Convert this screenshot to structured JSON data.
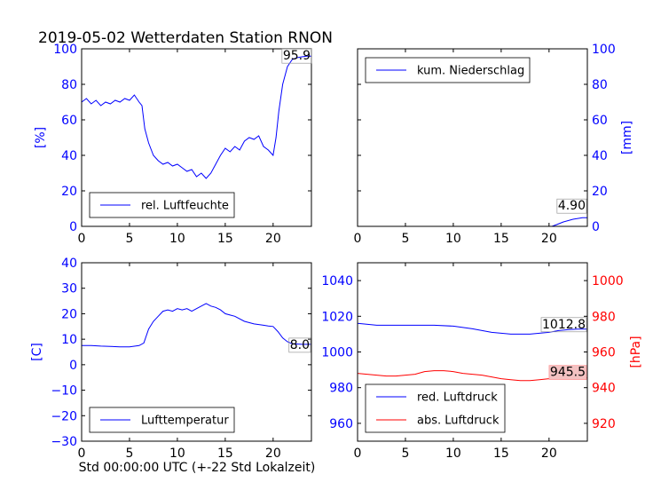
{
  "figure": {
    "title": "2019-05-02 Wetterdaten Station RNON",
    "bottom_label": "Std 00:00:00 UTC (+-22 Std Lokalzeit)",
    "colors": {
      "blue": "#0000ff",
      "red": "#ff0000",
      "black": "#000000",
      "red_box": "#f4c2c2"
    }
  },
  "chart_data": [
    {
      "id": "humidity",
      "type": "line",
      "ylabel": "[%]",
      "ylabel_color": "#0000ff",
      "xlim": [
        0,
        24
      ],
      "ylim": [
        0,
        100
      ],
      "xticks": [
        0,
        5,
        10,
        15,
        20
      ],
      "yticks": [
        0,
        20,
        40,
        60,
        80,
        100
      ],
      "ytick_color": "#0000ff",
      "legend": "bottom-left",
      "series": [
        {
          "name": "rel. Luftfeuchte",
          "color": "#0000ff",
          "x": [
            0,
            0.5,
            1,
            1.5,
            2,
            2.5,
            3,
            3.5,
            4,
            4.5,
            5,
            5.5,
            6,
            6.3,
            6.6,
            7,
            7.5,
            8,
            8.5,
            9,
            9.5,
            10,
            10.5,
            11,
            11.5,
            12,
            12.5,
            13,
            13.5,
            14,
            14.5,
            15,
            15.5,
            16,
            16.5,
            17,
            17.5,
            18,
            18.5,
            19,
            19.5,
            20,
            20.3,
            20.6,
            21,
            21.5,
            22,
            22.5,
            23,
            23.5,
            24
          ],
          "y": [
            70,
            72,
            69,
            71,
            68,
            70,
            69,
            71,
            70,
            72,
            71,
            74,
            70,
            68,
            55,
            47,
            40,
            37,
            35,
            36,
            34,
            35,
            33,
            31,
            32,
            28,
            30,
            27,
            30,
            35,
            40,
            44,
            42,
            45,
            43,
            48,
            50,
            49,
            51,
            45,
            43,
            40,
            50,
            65,
            80,
            90,
            94,
            95,
            95.5,
            95.9,
            95.9
          ]
        }
      ],
      "annotation": "95.9"
    },
    {
      "id": "precipitation",
      "type": "line",
      "ylabel": "[mm]",
      "ylabel_color": "#0000ff",
      "xlim": [
        0,
        24
      ],
      "ylim": [
        0,
        100
      ],
      "xticks": [
        0,
        5,
        10,
        15,
        20
      ],
      "yticks": [
        0,
        20,
        40,
        60,
        80,
        100
      ],
      "ytick_color": "#0000ff",
      "legend": "top-left",
      "series": [
        {
          "name": "kum. Niederschlag",
          "color": "#0000ff",
          "x": [
            0,
            20.3,
            20.8,
            21.5,
            22.5,
            23.5,
            24
          ],
          "y": [
            0,
            0,
            1.0,
            2.5,
            4.0,
            4.9,
            4.9
          ]
        }
      ],
      "annotation": "4.90"
    },
    {
      "id": "temperature",
      "type": "line",
      "ylabel": "[C]",
      "ylabel_color": "#0000ff",
      "xlim": [
        0,
        24
      ],
      "ylim": [
        -30,
        40
      ],
      "xticks": [
        0,
        5,
        10,
        15,
        20
      ],
      "yticks": [
        -30,
        -20,
        -10,
        0,
        10,
        20,
        30,
        40
      ],
      "ytick_color": "#0000ff",
      "legend": "bottom-left",
      "series": [
        {
          "name": "Lufttemperatur",
          "color": "#0000ff",
          "x": [
            0,
            1,
            2,
            3,
            4,
            5,
            6,
            6.5,
            7,
            7.5,
            8,
            8.5,
            9,
            9.5,
            10,
            10.5,
            11,
            11.5,
            12,
            12.5,
            13,
            13.5,
            14,
            14.5,
            15,
            15.5,
            16,
            17,
            18,
            19,
            19.5,
            20,
            20.5,
            21,
            21.5,
            22,
            23,
            24
          ],
          "y": [
            7.5,
            7.5,
            7.3,
            7.2,
            7.0,
            7.0,
            7.5,
            8.5,
            14,
            17,
            19,
            21,
            21.5,
            21,
            22,
            21.5,
            22,
            21,
            22,
            23,
            24,
            23,
            22.5,
            21.5,
            20,
            19.5,
            19,
            17,
            16,
            15.5,
            15.2,
            15,
            13,
            10.5,
            9,
            8.2,
            8.0,
            8.0
          ]
        }
      ],
      "annotation": "8.0"
    },
    {
      "id": "pressure",
      "type": "line",
      "ylim_left": [
        950,
        1050
      ],
      "yticks_left": [
        960,
        980,
        1000,
        1020,
        1040
      ],
      "ylim_right": [
        910,
        1010
      ],
      "yticks_right": [
        920,
        940,
        960,
        980,
        1000
      ],
      "ylabel_right": "[hPa]",
      "ylabel_right_color": "#ff0000",
      "xlim": [
        0,
        24
      ],
      "xticks": [
        0,
        5,
        10,
        15,
        20
      ],
      "legend": "bottom-left",
      "series": [
        {
          "name": "red. Luftdruck",
          "color": "#0000ff",
          "axis": "left",
          "x": [
            0,
            2,
            4,
            6,
            8,
            10,
            12,
            14,
            16,
            18,
            19,
            20,
            21,
            22,
            23,
            24
          ],
          "y": [
            1016,
            1015,
            1015,
            1015,
            1015,
            1014.5,
            1013,
            1011,
            1010,
            1010,
            1010.5,
            1011,
            1012,
            1012.5,
            1012.8,
            1012.8
          ]
        },
        {
          "name": "abs. Luftdruck",
          "color": "#ff0000",
          "axis": "right",
          "x": [
            0,
            1,
            2,
            3,
            4,
            5,
            6,
            7,
            8,
            9,
            10,
            11,
            12,
            13,
            14,
            15,
            16,
            17,
            18,
            19,
            20,
            21,
            22,
            23,
            24
          ],
          "y": [
            948,
            947.5,
            947,
            946.5,
            946.5,
            947,
            947.5,
            949,
            949.5,
            949.5,
            949,
            948,
            947.5,
            947,
            946,
            945,
            944.5,
            944,
            944,
            944.5,
            945,
            945.5,
            945.5,
            945.5,
            945.5
          ]
        }
      ],
      "annotations": [
        "1012.8",
        "945.5"
      ]
    }
  ]
}
